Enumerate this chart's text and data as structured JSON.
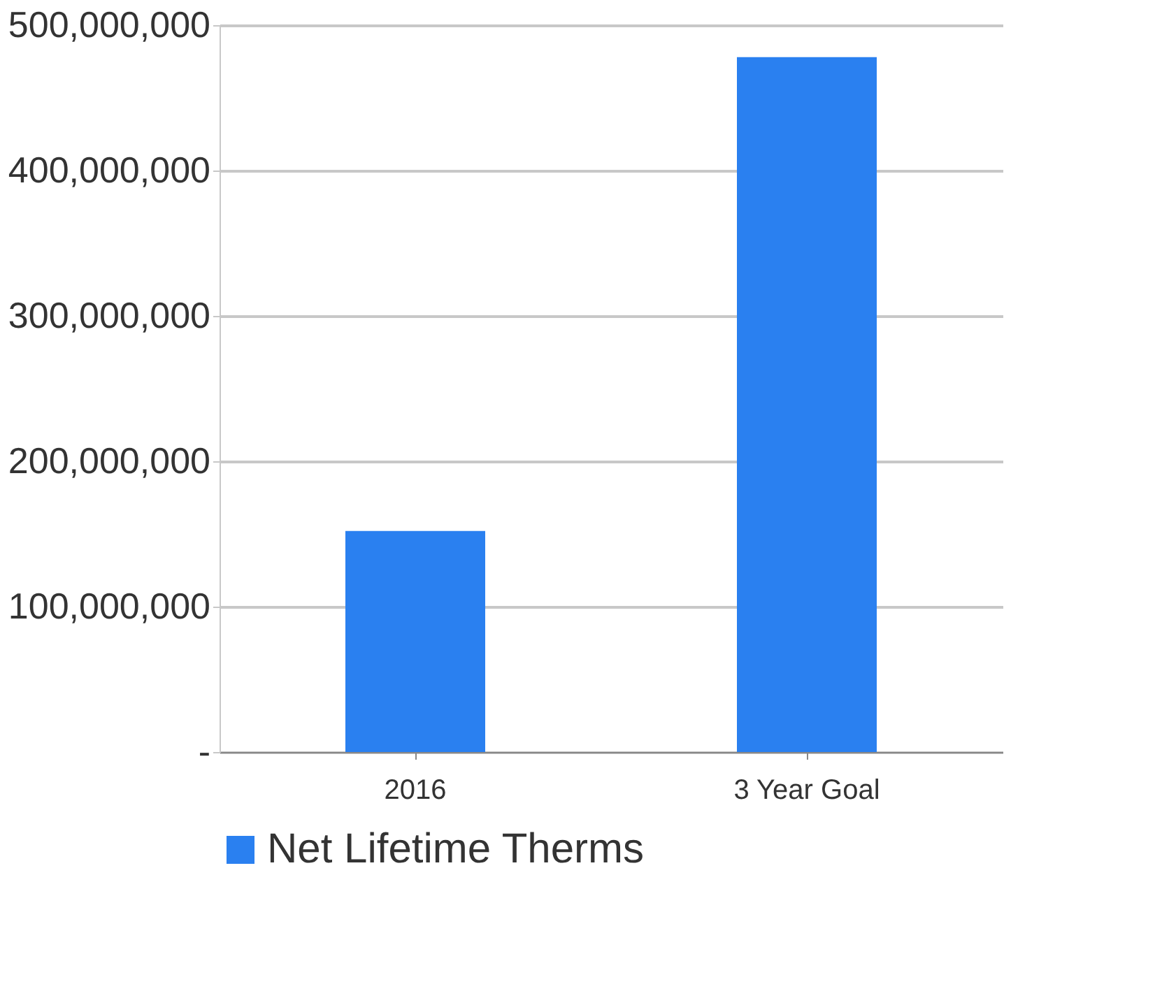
{
  "chart_data": {
    "type": "bar",
    "categories": [
      "2016",
      "3 Year Goal"
    ],
    "series": [
      {
        "name": "Net Lifetime Therms",
        "color": "#2a80f0",
        "values": [
          152000000,
          478000000
        ]
      }
    ],
    "ylim": [
      0,
      500000000
    ],
    "yticks": [
      {
        "value": 0,
        "label": "-"
      },
      {
        "value": 100000000,
        "label": "100,000,000"
      },
      {
        "value": 200000000,
        "label": "200,000,000"
      },
      {
        "value": 300000000,
        "label": "300,000,000"
      },
      {
        "value": 400000000,
        "label": "400,000,000"
      },
      {
        "value": 500000000,
        "label": "500,000,000"
      }
    ],
    "grid": "y",
    "legend": "bottom"
  }
}
